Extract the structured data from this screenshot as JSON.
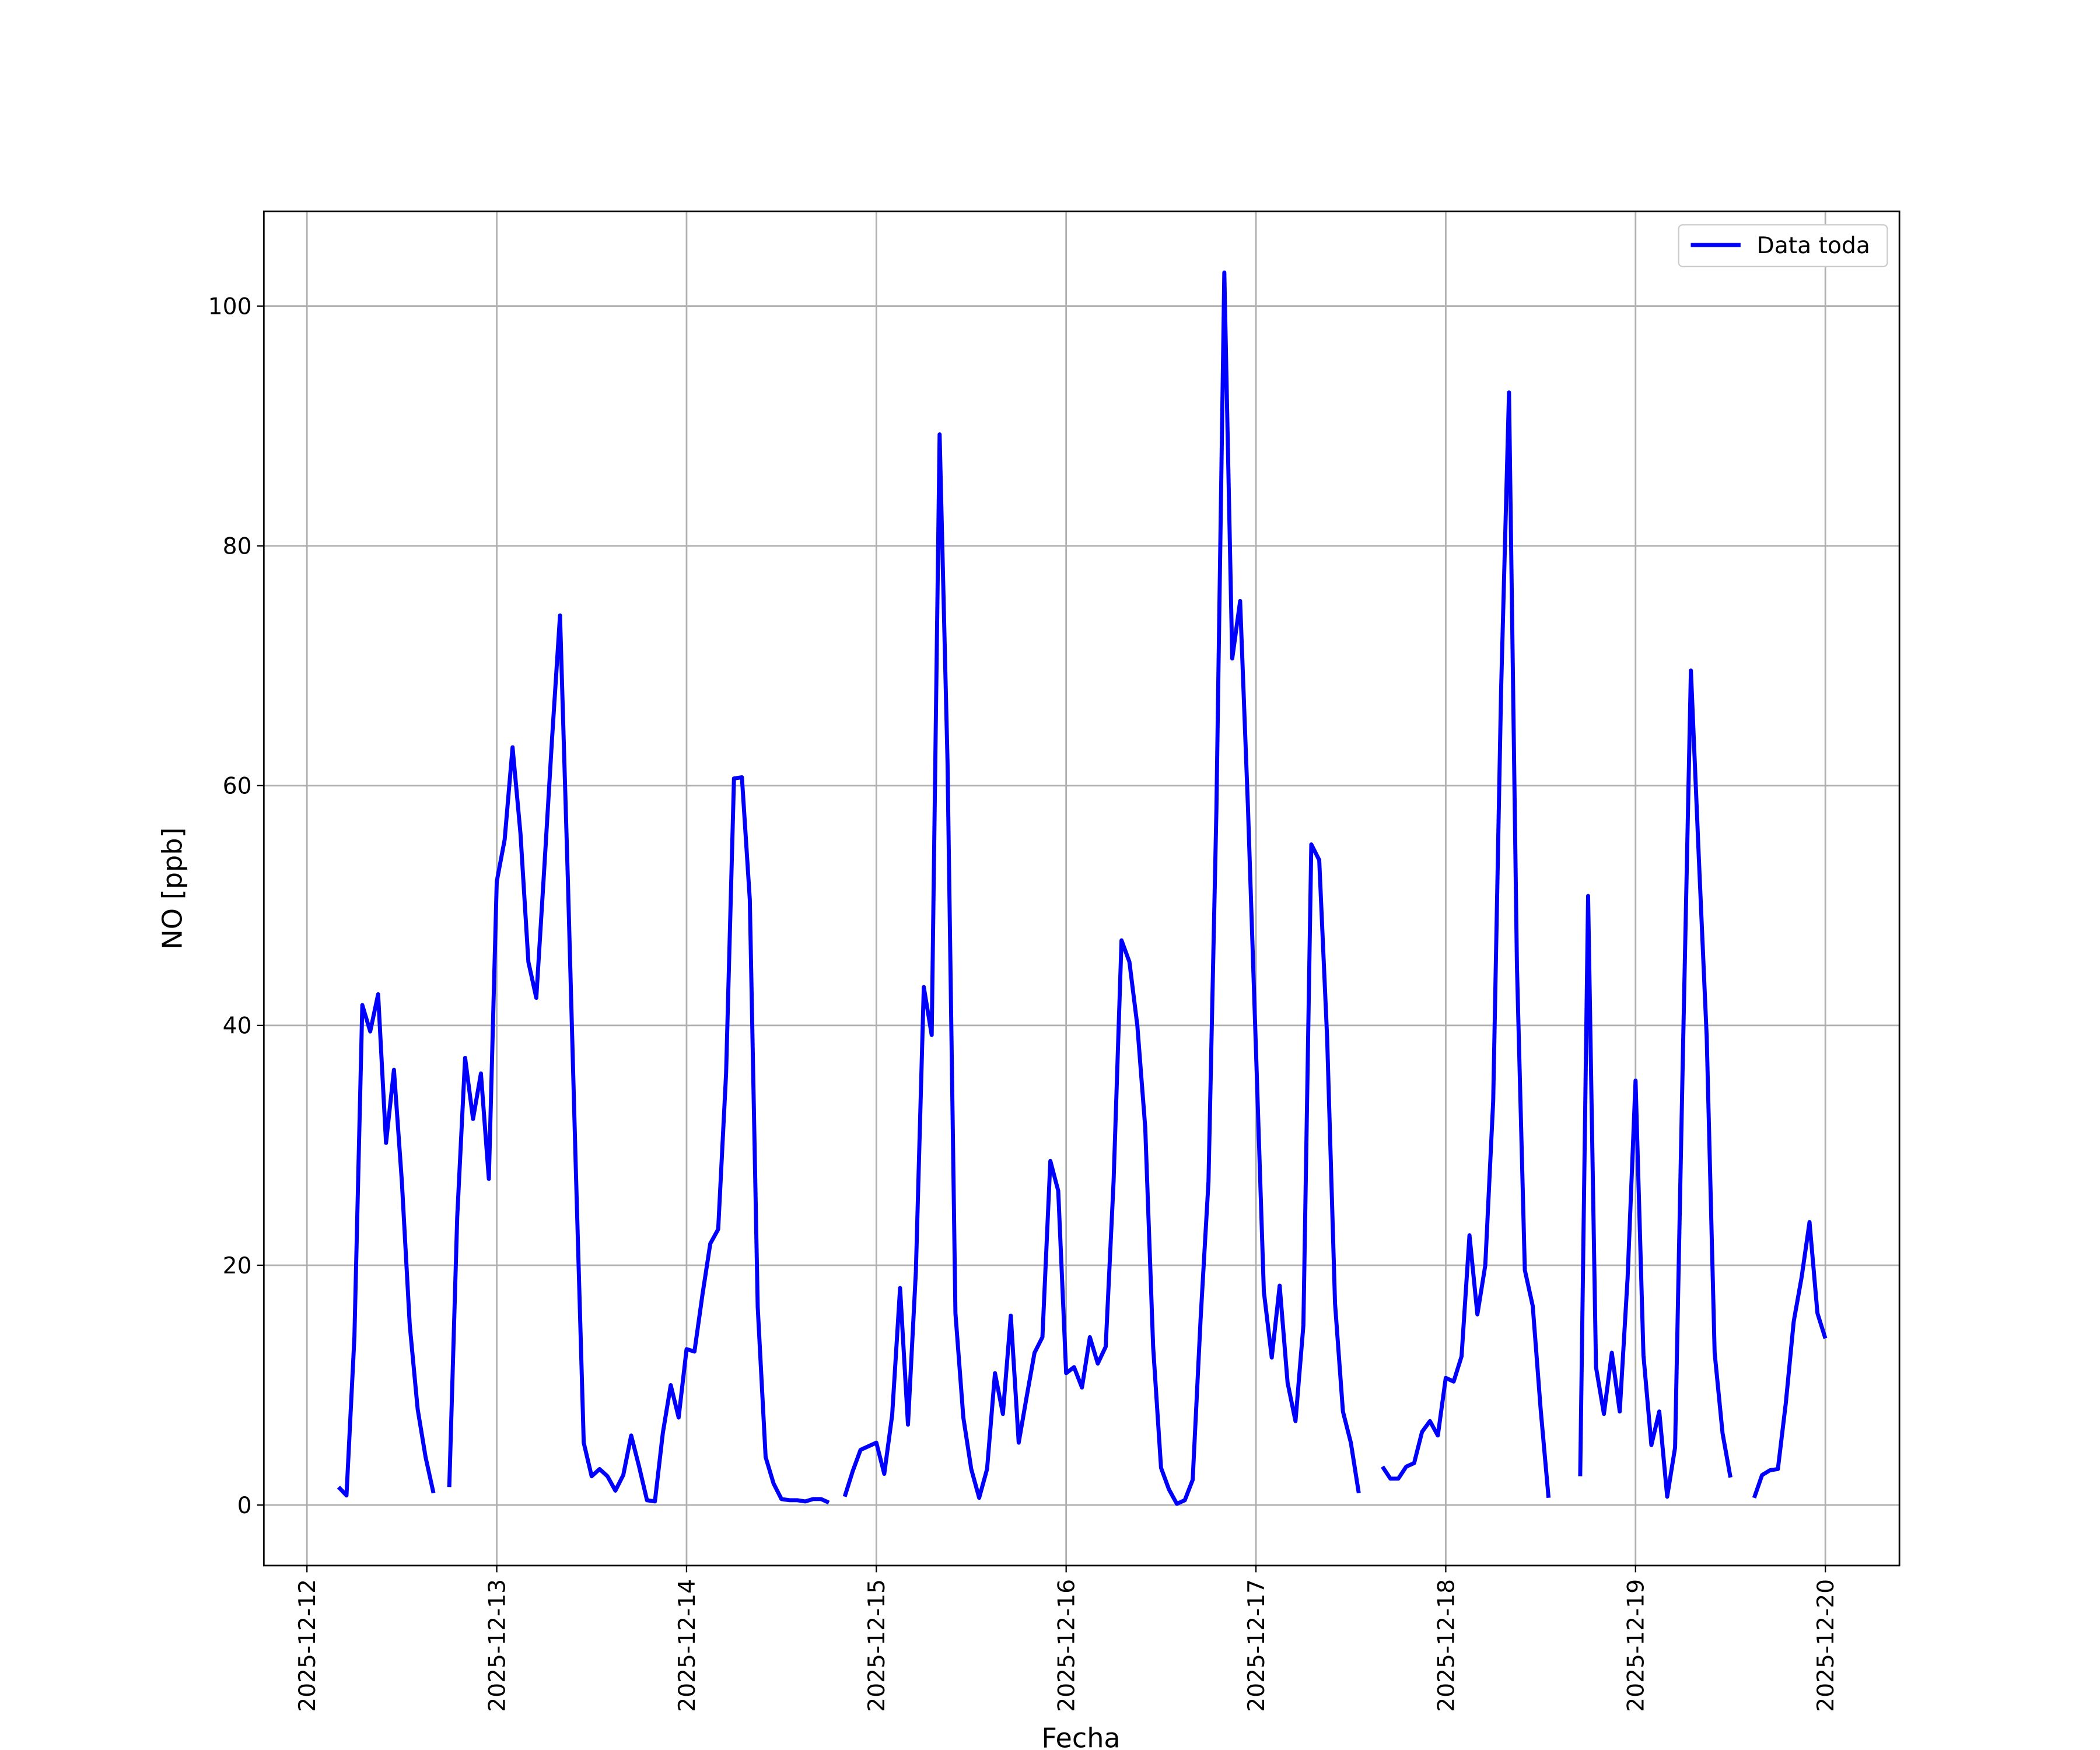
{
  "chart_data": {
    "type": "line",
    "x_label": "Fecha",
    "y_label": "NO [ppb]",
    "xlim": [
      "2025-12-11 18:33",
      "2025-12-20 09:22"
    ],
    "ylim": [
      -5.05,
      107.9
    ],
    "xticks": [
      "2025-12-12",
      "2025-12-13",
      "2025-12-14",
      "2025-12-15",
      "2025-12-16",
      "2025-12-17",
      "2025-12-18",
      "2025-12-19",
      "2025-12-20"
    ],
    "yticks": [
      0,
      20,
      40,
      60,
      80,
      100
    ],
    "grid": true,
    "legend": "upper right",
    "x": [
      "2025-12-12 04:00",
      "2025-12-12 05:00",
      "2025-12-12 06:00",
      "2025-12-12 07:00",
      "2025-12-12 08:00",
      "2025-12-12 09:00",
      "2025-12-12 10:00",
      "2025-12-12 11:00",
      "2025-12-12 12:00",
      "2025-12-12 13:00",
      "2025-12-12 14:00",
      "2025-12-12 15:00",
      "2025-12-12 16:00",
      "2025-12-12 17:00",
      "2025-12-12 18:00",
      "2025-12-12 19:00",
      "2025-12-12 20:00",
      "2025-12-12 21:00",
      "2025-12-12 22:00",
      "2025-12-12 23:00",
      "2025-12-13 00:00",
      "2025-12-13 01:00",
      "2025-12-13 02:00",
      "2025-12-13 03:00",
      "2025-12-13 04:00",
      "2025-12-13 05:00",
      "2025-12-13 06:00",
      "2025-12-13 07:00",
      "2025-12-13 08:00",
      "2025-12-13 09:00",
      "2025-12-13 10:00",
      "2025-12-13 11:00",
      "2025-12-13 12:00",
      "2025-12-13 13:00",
      "2025-12-13 14:00",
      "2025-12-13 15:00",
      "2025-12-13 16:00",
      "2025-12-13 17:00",
      "2025-12-13 18:00",
      "2025-12-13 19:00",
      "2025-12-13 20:00",
      "2025-12-13 21:00",
      "2025-12-13 22:00",
      "2025-12-13 23:00",
      "2025-12-14 00:00",
      "2025-12-14 01:00",
      "2025-12-14 02:00",
      "2025-12-14 03:00",
      "2025-12-14 04:00",
      "2025-12-14 05:00",
      "2025-12-14 06:00",
      "2025-12-14 07:00",
      "2025-12-14 08:00",
      "2025-12-14 09:00",
      "2025-12-14 10:00",
      "2025-12-14 11:00",
      "2025-12-14 12:00",
      "2025-12-14 13:00",
      "2025-12-14 14:00",
      "2025-12-14 15:00",
      "2025-12-14 16:00",
      "2025-12-14 17:00",
      "2025-12-14 18:00",
      "2025-12-14 19:00",
      "2025-12-14 20:00",
      "2025-12-14 21:00",
      "2025-12-14 22:00",
      "2025-12-14 23:00",
      "2025-12-15 00:00",
      "2025-12-15 01:00",
      "2025-12-15 02:00",
      "2025-12-15 03:00",
      "2025-12-15 04:00",
      "2025-12-15 05:00",
      "2025-12-15 06:00",
      "2025-12-15 07:00",
      "2025-12-15 08:00",
      "2025-12-15 09:00",
      "2025-12-15 10:00",
      "2025-12-15 11:00",
      "2025-12-15 12:00",
      "2025-12-15 13:00",
      "2025-12-15 14:00",
      "2025-12-15 15:00",
      "2025-12-15 16:00",
      "2025-12-15 17:00",
      "2025-12-15 18:00",
      "2025-12-15 19:00",
      "2025-12-15 20:00",
      "2025-12-15 21:00",
      "2025-12-15 22:00",
      "2025-12-15 23:00",
      "2025-12-16 00:00",
      "2025-12-16 01:00",
      "2025-12-16 02:00",
      "2025-12-16 03:00",
      "2025-12-16 04:00",
      "2025-12-16 05:00",
      "2025-12-16 06:00",
      "2025-12-16 07:00",
      "2025-12-16 08:00",
      "2025-12-16 09:00",
      "2025-12-16 10:00",
      "2025-12-16 11:00",
      "2025-12-16 12:00",
      "2025-12-16 13:00",
      "2025-12-16 14:00",
      "2025-12-16 15:00",
      "2025-12-16 16:00",
      "2025-12-16 17:00",
      "2025-12-16 18:00",
      "2025-12-16 19:00",
      "2025-12-16 20:00",
      "2025-12-16 21:00",
      "2025-12-16 22:00",
      "2025-12-16 23:00",
      "2025-12-17 00:00",
      "2025-12-17 01:00",
      "2025-12-17 02:00",
      "2025-12-17 03:00",
      "2025-12-17 04:00",
      "2025-12-17 05:00",
      "2025-12-17 06:00",
      "2025-12-17 07:00",
      "2025-12-17 08:00",
      "2025-12-17 09:00",
      "2025-12-17 10:00",
      "2025-12-17 11:00",
      "2025-12-17 12:00",
      "2025-12-17 13:00",
      "2025-12-17 14:00",
      "2025-12-17 16:00",
      "2025-12-17 17:00",
      "2025-12-17 18:00",
      "2025-12-17 19:00",
      "2025-12-17 20:00",
      "2025-12-17 21:00",
      "2025-12-17 22:00",
      "2025-12-17 23:00",
      "2025-12-18 00:00",
      "2025-12-18 01:00",
      "2025-12-18 02:00",
      "2025-12-18 03:00",
      "2025-12-18 04:00",
      "2025-12-18 05:00",
      "2025-12-18 06:00",
      "2025-12-18 07:00",
      "2025-12-18 08:00",
      "2025-12-18 09:00",
      "2025-12-18 10:00",
      "2025-12-18 11:00",
      "2025-12-18 12:00",
      "2025-12-18 13:00",
      "2025-12-18 14:00",
      "2025-12-18 17:00",
      "2025-12-18 18:00",
      "2025-12-18 19:00",
      "2025-12-18 20:00",
      "2025-12-18 21:00",
      "2025-12-18 22:00",
      "2025-12-18 23:00",
      "2025-12-19 00:00",
      "2025-12-19 01:00",
      "2025-12-19 02:00",
      "2025-12-19 03:00",
      "2025-12-19 04:00",
      "2025-12-19 05:00",
      "2025-12-19 06:00",
      "2025-12-19 07:00",
      "2025-12-19 08:00",
      "2025-12-19 09:00",
      "2025-12-19 10:00",
      "2025-12-19 11:00",
      "2025-12-19 12:00",
      "2025-12-19 13:00",
      "2025-12-19 15:00",
      "2025-12-19 16:00",
      "2025-12-19 17:00",
      "2025-12-19 18:00",
      "2025-12-19 19:00",
      "2025-12-19 20:00",
      "2025-12-19 21:00",
      "2025-12-19 22:00",
      "2025-12-19 23:00",
      "2025-12-20 00:00"
    ],
    "series": [
      {
        "name": "Data toda",
        "color": "#0000ff",
        "values": [
          1.5,
          0.8,
          14,
          41.7,
          39.5,
          42.6,
          30.2,
          36.3,
          27,
          15,
          8,
          4,
          1,
          null,
          1.5,
          24,
          37.3,
          32.2,
          36,
          27.2,
          52,
          55.5,
          63.2,
          56,
          45.3,
          42.3,
          53,
          64,
          74.2,
          52,
          28,
          5.2,
          2.4,
          3,
          2.4,
          1.2,
          2.5,
          5.8,
          3.2,
          0.4,
          0.3,
          6,
          10,
          7.3,
          13,
          12.8,
          17.5,
          21.8,
          23,
          36,
          60.6,
          60.7,
          50.5,
          16.5,
          4,
          1.8,
          0.5,
          0.4,
          0.4,
          0.3,
          0.5,
          0.5,
          0.2,
          null,
          0.7,
          2.8,
          4.6,
          4.9,
          5.2,
          2.6,
          7.5,
          18.1,
          6.7,
          19.5,
          43.2,
          39.2,
          89.3,
          62,
          16,
          7.3,
          3,
          0.6,
          3,
          11,
          7.6,
          15.8,
          5.2,
          9,
          12.7,
          14,
          28.7,
          26.2,
          11,
          11.5,
          9.8,
          14,
          11.8,
          13.2,
          27,
          47.1,
          45.3,
          40,
          31.5,
          13.2,
          3.1,
          1.3,
          0.1,
          0.4,
          2.1,
          15.5,
          27,
          58,
          102.8,
          70.6,
          75.4,
          58,
          38,
          17.8,
          12.3,
          18.3,
          10.2,
          7,
          15,
          55.1,
          53.8,
          39,
          16.8,
          7.8,
          5.2,
          1,
          null,
          3.2,
          2.2,
          2.2,
          3.2,
          3.5,
          6.1,
          7,
          5.8,
          10.6,
          10.3,
          12.4,
          22.5,
          15.9,
          20,
          33.7,
          68,
          92.8,
          45,
          19.6,
          16.6,
          8,
          0.6,
          null,
          2.4,
          50.8,
          11.5,
          7.6,
          12.7,
          7.8,
          19,
          35.4,
          12.5,
          5,
          7.8,
          0.7,
          4.8,
          38,
          69.6,
          54,
          39,
          12.7,
          6,
          2.3,
          null,
          0.6,
          2.5,
          2.9,
          3,
          8.5,
          15.3,
          19,
          23.6,
          16,
          13.9
        ]
      }
    ]
  }
}
